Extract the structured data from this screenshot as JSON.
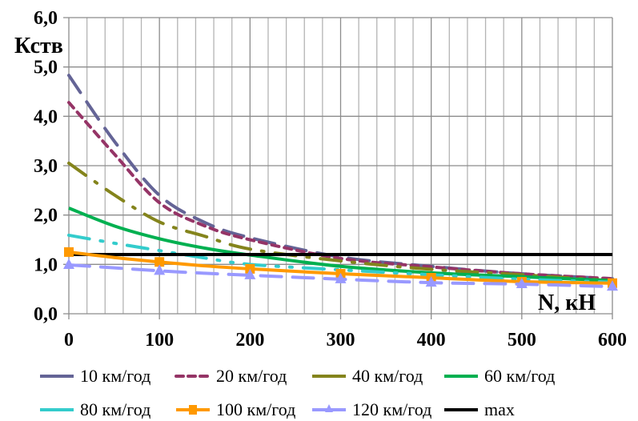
{
  "chart_data": {
    "type": "line",
    "title": "",
    "xlabel": "N, кН",
    "ylabel": "Кств",
    "xlim": [
      0,
      600
    ],
    "ylim": [
      0,
      6
    ],
    "x_ticks": [
      "0",
      "100",
      "200",
      "300",
      "400",
      "500",
      "600"
    ],
    "y_ticks": [
      "0,0",
      "1,0",
      "2,0",
      "3,0",
      "4,0",
      "5,0",
      "6,0"
    ],
    "grid": {
      "vertical_minor_step": 20,
      "horizontal_step": 1
    },
    "legend_position": "bottom",
    "x": [
      0,
      50,
      100,
      150,
      200,
      300,
      400,
      500,
      600
    ],
    "series": [
      {
        "name": "10 км/год",
        "color": "#646496",
        "dash": "long-dash",
        "marker": "none",
        "values": [
          4.83,
          3.5,
          2.4,
          1.85,
          1.54,
          1.15,
          0.96,
          0.81,
          0.71
        ]
      },
      {
        "name": "20 км/год",
        "color": "#953466",
        "dash": "short-dash",
        "marker": "none",
        "values": [
          4.28,
          3.24,
          2.25,
          1.78,
          1.5,
          1.12,
          0.95,
          0.81,
          0.71
        ]
      },
      {
        "name": "40 км/год",
        "color": "#84841c",
        "dash": "long-dash-dot",
        "marker": "none",
        "values": [
          3.05,
          2.41,
          1.86,
          1.57,
          1.31,
          1.07,
          0.9,
          0.79,
          0.67
        ]
      },
      {
        "name": "60 км/год",
        "color": "#00b050",
        "dash": "solid",
        "marker": "none",
        "values": [
          2.14,
          1.78,
          1.52,
          1.33,
          1.19,
          0.96,
          0.83,
          0.75,
          0.67
        ]
      },
      {
        "name": "80 км/год",
        "color": "#33cccc",
        "dash": "long-dash-dot-dot",
        "marker": "none",
        "values": [
          1.59,
          1.43,
          1.28,
          1.13,
          1.0,
          0.89,
          0.79,
          0.7,
          0.64
        ]
      },
      {
        "name": "100 км/год",
        "color": "#ff9900",
        "dash": "solid",
        "marker": "square",
        "values": [
          1.25,
          1.14,
          1.05,
          0.97,
          0.91,
          0.81,
          0.73,
          0.65,
          0.62
        ]
      },
      {
        "name": "120 км/год",
        "color": "#9999ff",
        "dash": "long-dash",
        "marker": "triangle",
        "values": [
          0.99,
          0.93,
          0.87,
          0.82,
          0.78,
          0.7,
          0.63,
          0.6,
          0.55
        ]
      },
      {
        "name": "max",
        "color": "#000000",
        "dash": "solid",
        "marker": "none",
        "values": [
          1.2,
          1.2,
          1.2,
          1.2,
          1.2,
          1.2,
          1.2,
          1.2,
          1.2
        ]
      }
    ],
    "marker_x": [
      0,
      100,
      200,
      300,
      400,
      500,
      600
    ]
  }
}
